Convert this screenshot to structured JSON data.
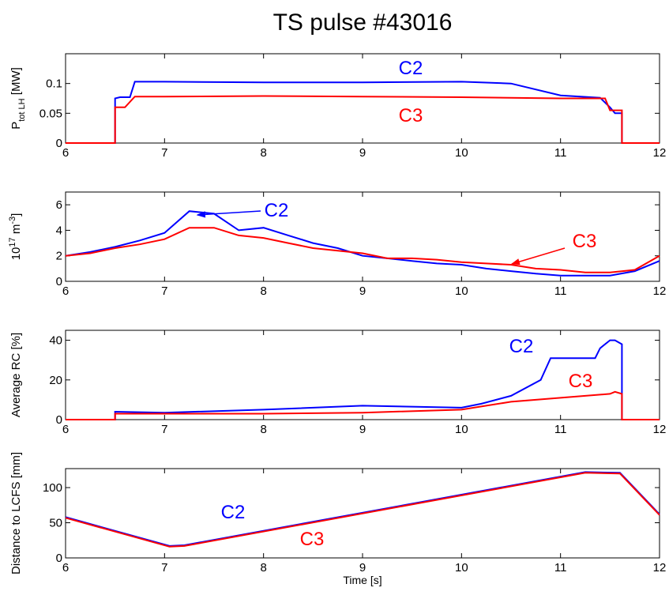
{
  "title": "TS pulse #43016",
  "chart_data": [
    {
      "type": "line",
      "ylabel": [
        {
          "text": "P"
        },
        {
          "text": "tot LH",
          "shift": "sub"
        },
        {
          "text": " [MW]"
        }
      ],
      "xlim": [
        6,
        12
      ],
      "xticks": [
        6,
        7,
        8,
        9,
        10,
        11,
        12
      ],
      "ylim": [
        0,
        0.15
      ],
      "yticks": [
        0,
        0.05,
        0.1
      ],
      "series": [
        {
          "name": "C2",
          "color": "#0000ff",
          "x": [
            6,
            6.5,
            6.5,
            6.55,
            6.65,
            6.7,
            7,
            8,
            9,
            10,
            10.5,
            11,
            11.4,
            11.5,
            11.55,
            11.6,
            11.62,
            11.62,
            12
          ],
          "values": [
            0,
            0,
            0.075,
            0.077,
            0.077,
            0.103,
            0.103,
            0.102,
            0.102,
            0.103,
            0.1,
            0.08,
            0.076,
            0.06,
            0.05,
            0.05,
            0.05,
            0,
            0
          ]
        },
        {
          "name": "C3",
          "color": "#ff0000",
          "x": [
            6,
            6.5,
            6.5,
            6.6,
            6.7,
            7,
            8,
            9,
            10,
            11,
            11.45,
            11.5,
            11.62,
            11.62,
            12
          ],
          "values": [
            0,
            0,
            0.06,
            0.06,
            0.078,
            0.078,
            0.079,
            0.078,
            0.077,
            0.075,
            0.075,
            0.055,
            0.055,
            0,
            0
          ]
        }
      ]
    },
    {
      "type": "line",
      "ylabel": [
        {
          "text": "10"
        },
        {
          "text": "17",
          "shift": "super"
        },
        {
          "text": " m"
        },
        {
          "text": "-3",
          "shift": "super"
        },
        {
          "text": "]"
        }
      ],
      "xlim": [
        6,
        12
      ],
      "xticks": [
        6,
        7,
        8,
        9,
        10,
        11,
        12
      ],
      "ylim": [
        0,
        7
      ],
      "yticks": [
        0,
        2,
        4,
        6
      ],
      "series": [
        {
          "name": "C2",
          "color": "#0000ff",
          "x": [
            6,
            6.25,
            6.5,
            6.75,
            7,
            7.25,
            7.5,
            7.75,
            8,
            8.25,
            8.5,
            8.75,
            9,
            9.25,
            9.5,
            9.75,
            10,
            10.25,
            10.5,
            10.75,
            11,
            11.25,
            11.5,
            11.75,
            12
          ],
          "values": [
            2.0,
            2.3,
            2.7,
            3.2,
            3.8,
            5.5,
            5.3,
            4.0,
            4.2,
            3.6,
            3.0,
            2.6,
            2.0,
            1.8,
            1.6,
            1.4,
            1.3,
            1.0,
            0.8,
            0.6,
            0.45,
            0.45,
            0.45,
            0.8,
            1.6
          ]
        },
        {
          "name": "C3",
          "color": "#ff0000",
          "x": [
            6,
            6.25,
            6.5,
            6.75,
            7,
            7.25,
            7.5,
            7.75,
            8,
            8.25,
            8.5,
            8.75,
            9,
            9.25,
            9.5,
            9.75,
            10,
            10.25,
            10.5,
            10.75,
            11,
            11.25,
            11.5,
            11.75,
            12
          ],
          "values": [
            2.0,
            2.2,
            2.6,
            2.9,
            3.3,
            4.2,
            4.2,
            3.6,
            3.4,
            3.0,
            2.6,
            2.4,
            2.2,
            1.8,
            1.8,
            1.7,
            1.5,
            1.4,
            1.3,
            1.0,
            0.9,
            0.7,
            0.7,
            0.9,
            2.0
          ]
        }
      ]
    },
    {
      "type": "line",
      "ylabel": [
        {
          "text": "Average RC [%]"
        }
      ],
      "xlim": [
        6,
        12
      ],
      "xticks": [
        6,
        7,
        8,
        9,
        10,
        11,
        12
      ],
      "ylim": [
        0,
        45
      ],
      "yticks": [
        0,
        20,
        40
      ],
      "series": [
        {
          "name": "C2",
          "color": "#0000ff",
          "x": [
            6,
            6.5,
            6.5,
            7,
            8,
            9,
            10,
            10.2,
            10.5,
            10.8,
            10.9,
            11,
            11.35,
            11.4,
            11.5,
            11.55,
            11.62,
            11.62,
            12
          ],
          "values": [
            0,
            0,
            4,
            3.5,
            5,
            7,
            6,
            8,
            12,
            20,
            31,
            31,
            31,
            36,
            40,
            40,
            38,
            0,
            0
          ]
        },
        {
          "name": "C3",
          "color": "#ff0000",
          "x": [
            6,
            6.5,
            6.5,
            7,
            8,
            9,
            10,
            10.5,
            11,
            11.5,
            11.55,
            11.62,
            11.62,
            12
          ],
          "values": [
            0,
            0,
            3,
            3,
            3,
            3.5,
            5,
            9,
            11,
            13,
            14,
            13,
            0,
            0
          ]
        }
      ]
    },
    {
      "type": "line",
      "ylabel": [
        {
          "text": "Distance to LCFS [mm]"
        }
      ],
      "xlabel": "Time [s]",
      "xlim": [
        6,
        12
      ],
      "xticks": [
        6,
        7,
        8,
        9,
        10,
        11,
        12
      ],
      "ylim": [
        0,
        127
      ],
      "yticks": [
        0,
        50,
        100
      ],
      "series": [
        {
          "name": "C2",
          "color": "#0000ff",
          "x": [
            6,
            7.05,
            7.2,
            11.25,
            11.6,
            12
          ],
          "values": [
            58,
            17,
            18,
            122,
            121,
            62
          ]
        },
        {
          "name": "C3",
          "color": "#ff0000",
          "x": [
            6,
            7.05,
            7.2,
            11.25,
            11.6,
            12
          ],
          "values": [
            57,
            16,
            17,
            121,
            120,
            61
          ]
        }
      ]
    }
  ]
}
